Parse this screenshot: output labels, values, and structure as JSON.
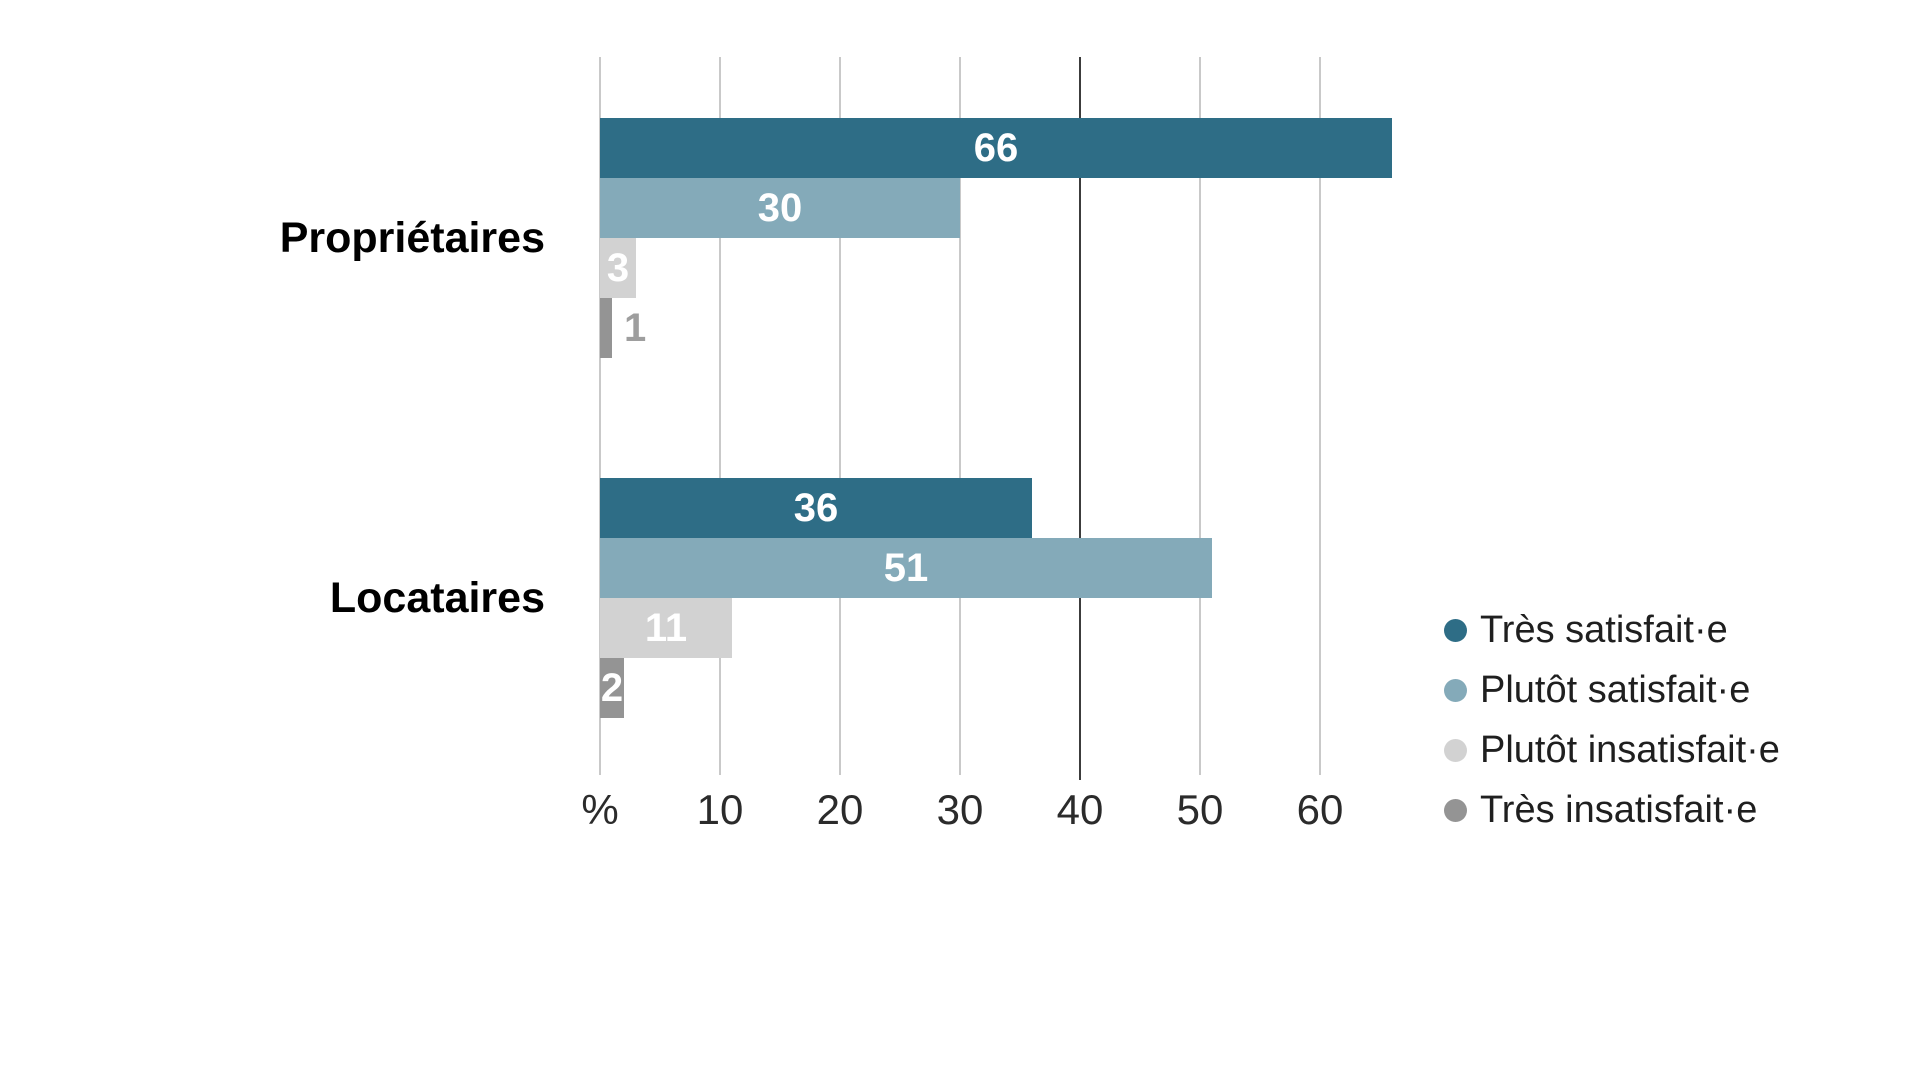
{
  "chart_data": {
    "type": "bar",
    "orientation": "horizontal",
    "title": "",
    "categories": [
      "Propriétaires",
      "Locataires"
    ],
    "series": [
      {
        "name": "Très satisfait·e",
        "color": "#2e6d86",
        "values": [
          66,
          36
        ]
      },
      {
        "name": "Plutôt satisfait·e",
        "color": "#84aab9",
        "values": [
          30,
          51
        ]
      },
      {
        "name": "Plutôt insatisfait·e",
        "color": "#d2d2d2",
        "values": [
          3,
          11
        ]
      },
      {
        "name": "Très insatisfait·e",
        "color": "#949494",
        "values": [
          1,
          2
        ]
      }
    ],
    "x_ticks": [
      {
        "label": "%",
        "value": 0
      },
      {
        "label": "10",
        "value": 10
      },
      {
        "label": "20",
        "value": 20
      },
      {
        "label": "30",
        "value": 30
      },
      {
        "label": "40",
        "value": 40
      },
      {
        "label": "50",
        "value": 50
      },
      {
        "label": "60",
        "value": 60
      }
    ],
    "xlim": [
      0,
      66.5
    ],
    "grid": true,
    "emphasized_gridline_value": 40,
    "legend_position": "right",
    "value_labels_shown": true,
    "colors": {
      "background": "#ffffff",
      "gridline": "#c9c9c9",
      "emphasized_gridline": "#3c3c3c",
      "value_label_inside": "#ffffff",
      "value_label_outside": "#9e9e9e",
      "category_label": "#000000",
      "axis_tick_label": "#2b2b2b",
      "legend_text": "#1f1f1f"
    }
  }
}
